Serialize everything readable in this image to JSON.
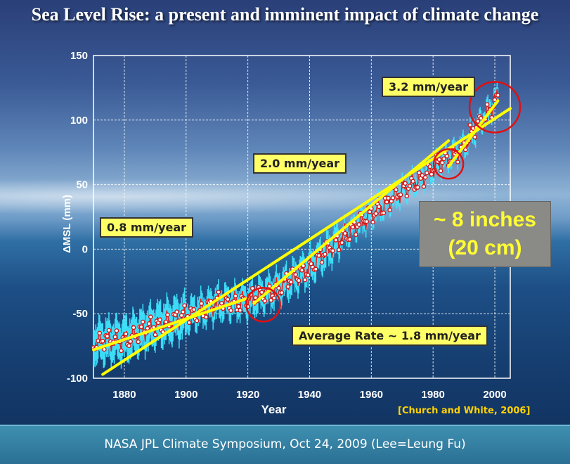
{
  "slide": {
    "title": "Sea Level Rise: a present and imminent impact of climate change",
    "footer": "NASA JPL Climate Symposium, Oct 24, 2009  (Lee=Leung Fu)",
    "citation": "[Church and White, 2006]",
    "callout": {
      "line1": "~ 8 inches",
      "line2": "(20 cm)"
    },
    "rate_labels": {
      "r08": "0.8 mm/year",
      "r20": "2.0 mm/year",
      "r32": "3.2 mm/year",
      "avg": "Average Rate ~ 1.8 mm/year"
    }
  },
  "chart_data": {
    "type": "scatter",
    "title": "",
    "xlabel": "Year",
    "ylabel": "ΔMSL (mm)",
    "xlim": [
      1870,
      2005
    ],
    "ylim": [
      -100,
      150
    ],
    "xticks": [
      1880,
      1900,
      1920,
      1940,
      1960,
      1980,
      2000
    ],
    "yticks": [
      -100,
      -50,
      0,
      50,
      100,
      150
    ],
    "grid": true,
    "series": [
      {
        "type": "line",
        "x": [
          1870,
          1880,
          1890,
          1900,
          1910,
          1920,
          1930,
          1940,
          1950,
          1960,
          1970,
          1980,
          1990,
          2001
        ],
        "y": [
          -72,
          -70,
          -59,
          -52,
          -42,
          -40,
          -30,
          -14,
          8,
          27,
          45,
          62,
          80,
          118
        ]
      },
      {
        "type": "trend",
        "x": [
          1870,
          1920
        ],
        "y": [
          -78,
          -38
        ]
      },
      {
        "type": "trend",
        "x": [
          1922,
          1985
        ],
        "y": [
          -42,
          84
        ]
      },
      {
        "type": "trend",
        "x": [
          1985,
          2001
        ],
        "y": [
          64,
          115
        ]
      },
      {
        "type": "trend",
        "x": [
          1873,
          2005
        ],
        "y": [
          -97,
          109
        ]
      }
    ],
    "highlights": [
      {
        "x": 1925,
        "y": -43
      },
      {
        "x": 1985,
        "y": 66
      },
      {
        "x": 2000,
        "y": 110
      }
    ]
  }
}
